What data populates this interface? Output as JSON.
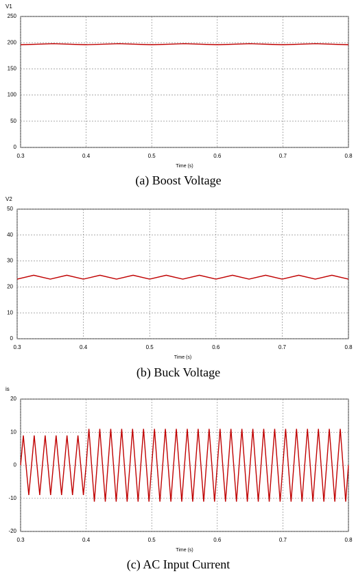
{
  "chart_data": [
    {
      "type": "line",
      "title": "(a)  Boost Voltage",
      "xlabel": "Time (s)",
      "x": [
        0.3,
        0.35,
        0.4,
        0.45,
        0.5,
        0.55,
        0.6,
        0.65,
        0.7,
        0.75,
        0.8
      ],
      "series": [
        {
          "name": "V1",
          "color": "#c00000",
          "values": [
            196,
            198,
            196,
            198,
            196,
            198,
            196,
            198,
            196,
            198,
            196
          ]
        }
      ],
      "xlim": [
        0.3,
        0.8
      ],
      "xticks": [
        0.3,
        0.4,
        0.5,
        0.6,
        0.7,
        0.8
      ],
      "ylim": [
        0,
        250
      ],
      "yticks": [
        0,
        50,
        100,
        150,
        200,
        250
      ],
      "grid": true
    },
    {
      "type": "line",
      "title": "(b)  Buck Voltage",
      "xlabel": "Time (s)",
      "x": [
        0.3,
        0.325,
        0.35,
        0.375,
        0.4,
        0.425,
        0.45,
        0.475,
        0.5,
        0.525,
        0.55,
        0.575,
        0.6,
        0.625,
        0.65,
        0.675,
        0.7,
        0.725,
        0.75,
        0.775,
        0.8
      ],
      "series": [
        {
          "name": "V2",
          "color": "#c00000",
          "values": [
            23,
            24.5,
            23,
            24.5,
            23,
            24.5,
            23,
            24.5,
            23,
            24.5,
            23,
            24.5,
            23,
            24.5,
            23,
            24.5,
            23,
            24.5,
            23,
            24.5,
            23
          ]
        }
      ],
      "xlim": [
        0.3,
        0.8
      ],
      "xticks": [
        0.3,
        0.4,
        0.5,
        0.6,
        0.7,
        0.8
      ],
      "ylim": [
        0,
        50
      ],
      "yticks": [
        0,
        10,
        20,
        30,
        40,
        50
      ],
      "grid": true
    },
    {
      "type": "line",
      "title": "(c)  AC Input Current",
      "xlabel": "Time (s)",
      "x": [
        0.3,
        0.3042,
        0.3083,
        0.3125,
        0.3167,
        0.3208,
        0.325,
        0.3292,
        0.3333,
        0.3375,
        0.3417,
        0.3458,
        0.35,
        0.3542,
        0.3583,
        0.3625,
        0.3667,
        0.3708,
        0.375,
        0.3792,
        0.3833,
        0.3875,
        0.3917,
        0.3958,
        0.4,
        0.4042,
        0.4083,
        0.4125,
        0.4167,
        0.4208,
        0.425,
        0.4292,
        0.4333,
        0.4375,
        0.4417,
        0.4458,
        0.45,
        0.4542,
        0.4583,
        0.4625,
        0.4667,
        0.4708,
        0.475,
        0.4792,
        0.4833,
        0.4875,
        0.4917,
        0.4958,
        0.5,
        0.5042,
        0.5083,
        0.5125,
        0.5167,
        0.5208,
        0.525,
        0.5292,
        0.5333,
        0.5375,
        0.5417,
        0.5458,
        0.55,
        0.5542,
        0.5583,
        0.5625,
        0.5667,
        0.5708,
        0.575,
        0.5792,
        0.5833,
        0.5875,
        0.5917,
        0.5958,
        0.6,
        0.6042,
        0.6083,
        0.6125,
        0.6167,
        0.6208,
        0.625,
        0.6292,
        0.6333,
        0.6375,
        0.6417,
        0.6458,
        0.65,
        0.6542,
        0.6583,
        0.6625,
        0.6667,
        0.6708,
        0.675,
        0.6792,
        0.6833,
        0.6875,
        0.6917,
        0.6958,
        0.7,
        0.7042,
        0.7083,
        0.7125,
        0.7167,
        0.7208,
        0.725,
        0.7292,
        0.7333,
        0.7375,
        0.7417,
        0.7458,
        0.75,
        0.7542,
        0.7583,
        0.7625,
        0.7667,
        0.7708,
        0.775,
        0.7792,
        0.7833,
        0.7875,
        0.7917,
        0.7958,
        0.8
      ],
      "series": [
        {
          "name": "is",
          "color": "#c00000",
          "values": [
            0,
            9,
            0,
            -9,
            0,
            9,
            0,
            -9,
            0,
            9,
            0,
            -9,
            0,
            9,
            0,
            -9,
            0,
            9,
            0,
            -9,
            0,
            9,
            0,
            -9,
            0,
            11,
            0,
            -11,
            0,
            11,
            0,
            -11,
            0,
            11,
            0,
            -11,
            0,
            11,
            0,
            -11,
            0,
            11,
            0,
            -11,
            0,
            11,
            0,
            -11,
            0,
            11,
            0,
            -11,
            0,
            11,
            0,
            -11,
            0,
            11,
            0,
            -11,
            0,
            11,
            0,
            -11,
            0,
            11,
            0,
            -11,
            0,
            11,
            0,
            -11,
            0,
            11,
            0,
            -11,
            0,
            11,
            0,
            -11,
            0,
            11,
            0,
            -11,
            0,
            11,
            0,
            -11,
            0,
            11,
            0,
            -11,
            0,
            11,
            0,
            -11,
            0,
            11,
            0,
            -11,
            0,
            11,
            0,
            -11,
            0,
            11,
            0,
            -11,
            0,
            11,
            0,
            -11,
            0,
            11,
            0,
            -11,
            0,
            11,
            0,
            -11,
            0
          ]
        }
      ],
      "xlim": [
        0.3,
        0.8
      ],
      "xticks": [
        0.3,
        0.4,
        0.5,
        0.6,
        0.7,
        0.8
      ],
      "ylim": [
        -20,
        20
      ],
      "yticks": [
        -20,
        -10,
        0,
        10,
        20
      ],
      "grid": true
    }
  ]
}
